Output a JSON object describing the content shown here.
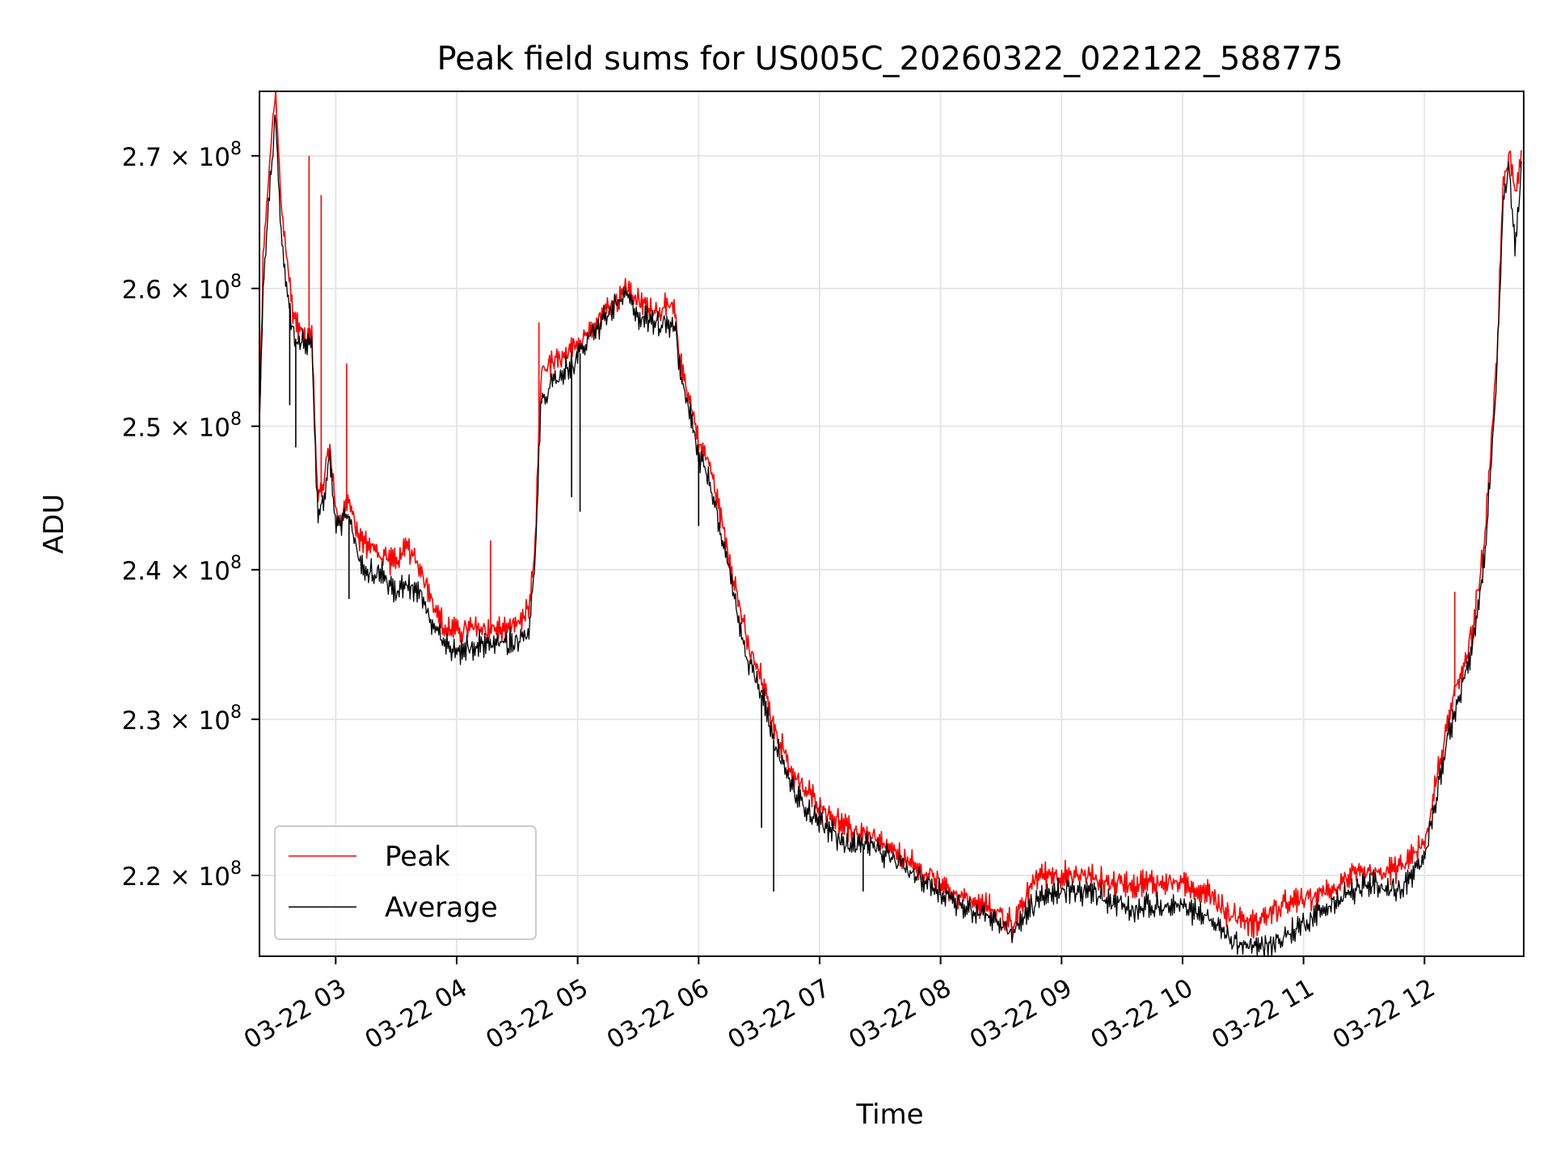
{
  "chart_data": {
    "type": "line",
    "title": "Peak field sums for US005C_20260322_022122_588775",
    "xlabel": "Time",
    "ylabel": "ADU",
    "x_unit": "hours",
    "xlim": [
      2.37,
      12.82
    ],
    "ylim": [
      215000000.0,
      275000000.0
    ],
    "y_scale": "log",
    "grid": true,
    "legend_position": "lower-left",
    "x_ticks": [
      {
        "value": 3,
        "label": "03-22 03"
      },
      {
        "value": 4,
        "label": "03-22 04"
      },
      {
        "value": 5,
        "label": "03-22 05"
      },
      {
        "value": 6,
        "label": "03-22 06"
      },
      {
        "value": 7,
        "label": "03-22 07"
      },
      {
        "value": 8,
        "label": "03-22 08"
      },
      {
        "value": 9,
        "label": "03-22 09"
      },
      {
        "value": 10,
        "label": "03-22 10"
      },
      {
        "value": 11,
        "label": "03-22 11"
      },
      {
        "value": 12,
        "label": "03-22 12"
      }
    ],
    "y_ticks": [
      {
        "value": 220000000.0,
        "mantissa": "2.2",
        "exp_base": "× 10",
        "exp": "8"
      },
      {
        "value": 230000000.0,
        "mantissa": "2.3",
        "exp_base": "× 10",
        "exp": "8"
      },
      {
        "value": 240000000.0,
        "mantissa": "2.4",
        "exp_base": "× 10",
        "exp": "8"
      },
      {
        "value": 250000000.0,
        "mantissa": "2.5",
        "exp_base": "× 10",
        "exp": "8"
      },
      {
        "value": 260000000.0,
        "mantissa": "2.6",
        "exp_base": "× 10",
        "exp": "8"
      },
      {
        "value": 270000000.0,
        "mantissa": "2.7",
        "exp_base": "× 10",
        "exp": "8"
      }
    ],
    "series": [
      {
        "name": "Peak",
        "color": "#ff0000",
        "x": [
          2.37,
          2.4,
          2.45,
          2.5,
          2.55,
          2.6,
          2.65,
          2.7,
          2.75,
          2.8,
          2.85,
          2.9,
          2.95,
          3.0,
          3.05,
          3.1,
          3.2,
          3.3,
          3.4,
          3.5,
          3.6,
          3.7,
          3.8,
          3.9,
          4.0,
          4.2,
          4.4,
          4.6,
          4.65,
          4.7,
          4.8,
          4.9,
          5.0,
          5.2,
          5.4,
          5.5,
          5.6,
          5.8,
          5.85,
          5.9,
          6.0,
          6.1,
          6.2,
          6.3,
          6.4,
          6.5,
          6.55,
          6.6,
          6.7,
          6.8,
          7.0,
          7.2,
          7.4,
          7.6,
          7.8,
          8.0,
          8.2,
          8.4,
          8.6,
          8.8,
          9.0,
          9.2,
          9.4,
          9.6,
          9.8,
          10.0,
          10.2,
          10.4,
          10.6,
          10.8,
          11.0,
          11.2,
          11.4,
          11.6,
          11.8,
          12.0,
          12.1,
          12.2,
          12.3,
          12.4,
          12.5,
          12.6,
          12.65,
          12.7,
          12.75,
          12.8
        ],
        "y": [
          250000000.0,
          262000000.0,
          269000000.0,
          275000000.0,
          266000000.0,
          262000000.0,
          258000000.0,
          257000000.0,
          256500000.0,
          257000000.0,
          245000000.0,
          246000000.0,
          249000000.0,
          244000000.0,
          243500000.0,
          245000000.0,
          242000000.0,
          241500000.0,
          241000000.0,
          240500000.0,
          241500000.0,
          240000000.0,
          238000000.0,
          236000000.0,
          236000000.0,
          236000000.0,
          236000000.0,
          237000000.0,
          242000000.0,
          254000000.0,
          254500000.0,
          255000000.0,
          256000000.0,
          258000000.0,
          260000000.0,
          259000000.0,
          258500000.0,
          258500000.0,
          254500000.0,
          253000000.0,
          249000000.0,
          247000000.0,
          243000000.0,
          239000000.0,
          235000000.0,
          233000000.0,
          232000000.0,
          230000000.0,
          228000000.0,
          226000000.0,
          224500000.0,
          223000000.0,
          222500000.0,
          221500000.0,
          220500000.0,
          219500000.0,
          218500000.0,
          218000000.0,
          217000000.0,
          220000000.0,
          220000000.0,
          220000000.0,
          219500000.0,
          219500000.0,
          219500000.0,
          219500000.0,
          219000000.0,
          217500000.0,
          217000000.0,
          218000000.0,
          218500000.0,
          219000000.0,
          220000000.0,
          220000000.0,
          220500000.0,
          222000000.0,
          226000000.0,
          230000000.0,
          233000000.0,
          236000000.0,
          242000000.0,
          255000000.0,
          268000000.0,
          270000000.0,
          267000000.0,
          270000000.0
        ]
      },
      {
        "name": "Average",
        "color": "#000000",
        "x": [
          2.37,
          2.4,
          2.45,
          2.5,
          2.55,
          2.6,
          2.65,
          2.7,
          2.75,
          2.8,
          2.85,
          2.9,
          2.95,
          3.0,
          3.05,
          3.1,
          3.2,
          3.3,
          3.4,
          3.5,
          3.6,
          3.7,
          3.8,
          3.9,
          4.0,
          4.2,
          4.4,
          4.6,
          4.65,
          4.7,
          4.8,
          4.9,
          5.0,
          5.2,
          5.4,
          5.5,
          5.6,
          5.8,
          5.85,
          5.9,
          6.0,
          6.1,
          6.2,
          6.3,
          6.4,
          6.5,
          6.55,
          6.6,
          6.7,
          6.8,
          7.0,
          7.2,
          7.4,
          7.6,
          7.8,
          8.0,
          8.2,
          8.4,
          8.6,
          8.8,
          9.0,
          9.2,
          9.4,
          9.6,
          9.8,
          10.0,
          10.2,
          10.4,
          10.6,
          10.8,
          11.0,
          11.2,
          11.4,
          11.6,
          11.8,
          12.0,
          12.1,
          12.2,
          12.3,
          12.4,
          12.5,
          12.6,
          12.65,
          12.7,
          12.75,
          12.8
        ],
        "y": [
          250000000.0,
          260000000.0,
          267000000.0,
          273000000.0,
          264000000.0,
          260000000.0,
          256500000.0,
          256000000.0,
          256000000.0,
          256500000.0,
          244000000.0,
          244500000.0,
          248000000.0,
          243000000.0,
          243000000.0,
          244000000.0,
          240500000.0,
          240000000.0,
          239500000.0,
          238500000.0,
          239000000.0,
          238500000.0,
          236500000.0,
          235000000.0,
          234500000.0,
          235000000.0,
          235000000.0,
          235500000.0,
          241000000.0,
          252000000.0,
          253000000.0,
          254000000.0,
          255000000.0,
          257500000.0,
          259500000.0,
          258000000.0,
          257500000.0,
          257500000.0,
          253500000.0,
          252000000.0,
          248000000.0,
          246000000.0,
          242000000.0,
          238000000.0,
          234000000.0,
          232000000.0,
          231000000.0,
          229000000.0,
          227000000.0,
          225000000.0,
          223500000.0,
          222000000.0,
          222000000.0,
          221000000.0,
          220000000.0,
          219000000.0,
          218000000.0,
          217500000.0,
          216500000.0,
          218500000.0,
          219000000.0,
          219000000.0,
          218500000.0,
          218000000.0,
          218000000.0,
          218000000.0,
          217500000.0,
          216000000.0,
          215500000.0,
          216000000.0,
          217000000.0,
          218000000.0,
          219000000.0,
          219500000.0,
          219000000.0,
          221000000.0,
          225000000.0,
          229000000.0,
          232000000.0,
          235000000.0,
          241000000.0,
          254000000.0,
          267000000.0,
          269000000.0,
          263000000.0,
          269000000.0
        ]
      }
    ],
    "spikes": [
      {
        "series": "Peak",
        "x": 2.78,
        "y": 270000000.0
      },
      {
        "series": "Peak",
        "x": 2.88,
        "y": 267000000.0
      },
      {
        "series": "Peak",
        "x": 3.09,
        "y": 254500000.0
      },
      {
        "series": "Peak",
        "x": 4.28,
        "y": 242000000.0
      },
      {
        "series": "Peak",
        "x": 4.68,
        "y": 257500000.0
      },
      {
        "series": "Peak",
        "x": 12.25,
        "y": 238500000.0
      },
      {
        "series": "Average",
        "x": 2.62,
        "y": 251500000.0
      },
      {
        "series": "Average",
        "x": 2.67,
        "y": 248500000.0
      },
      {
        "series": "Average",
        "x": 3.11,
        "y": 238000000.0
      },
      {
        "series": "Average",
        "x": 4.95,
        "y": 245000000.0
      },
      {
        "series": "Average",
        "x": 5.02,
        "y": 244000000.0
      },
      {
        "series": "Average",
        "x": 6.0,
        "y": 243000000.0
      },
      {
        "series": "Average",
        "x": 6.52,
        "y": 223000000.0
      },
      {
        "series": "Average",
        "x": 6.62,
        "y": 219000000.0
      },
      {
        "series": "Average",
        "x": 7.36,
        "y": 219000000.0
      }
    ],
    "legend": [
      {
        "name": "Peak",
        "color": "#ff0000"
      },
      {
        "name": "Average",
        "color": "#000000"
      }
    ]
  }
}
